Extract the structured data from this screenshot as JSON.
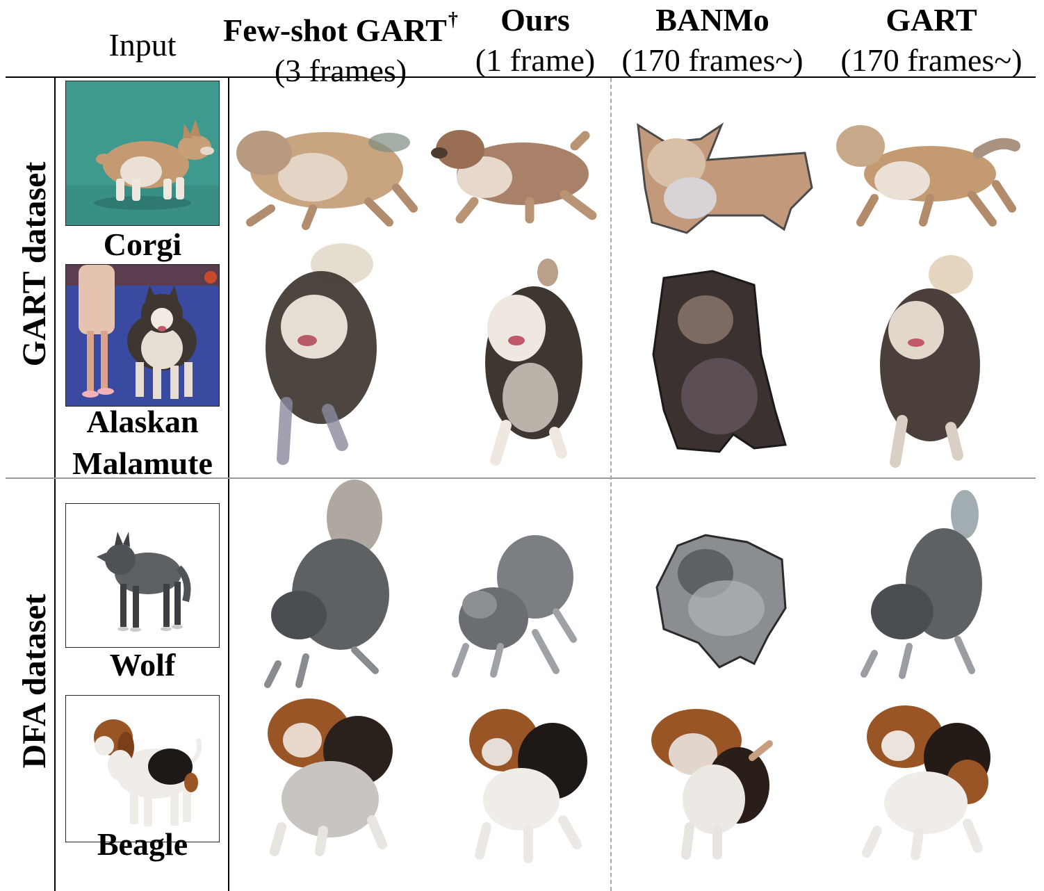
{
  "header": {
    "input": "Input",
    "columns": [
      {
        "key": "few_shot_gart",
        "method": "Few-shot GART",
        "superscript": "†",
        "frames": "(3 frames)"
      },
      {
        "key": "ours",
        "method": "Ours",
        "superscript": "",
        "frames": "(1 frame)"
      },
      {
        "key": "banmo",
        "method": "BANMo",
        "superscript": "",
        "frames": "(170 frames~)"
      },
      {
        "key": "gart",
        "method": "GART",
        "superscript": "",
        "frames": "(170 frames~)"
      }
    ]
  },
  "groups": [
    {
      "label": "GART dataset",
      "rows": [
        {
          "species": "Corgi",
          "input_bg": "#3e9a8e"
        },
        {
          "species_line1": "Alaskan",
          "species_line2": "Malamute",
          "input_bg": "#3a4aa0"
        }
      ]
    },
    {
      "label": "DFA dataset",
      "rows": [
        {
          "species": "Wolf",
          "input_bg": "#ffffff"
        },
        {
          "species": "Beagle",
          "input_bg": "#ffffff"
        }
      ]
    }
  ],
  "colors": {
    "corgi_body": "#c39a72",
    "corgi_chest": "#eae0d6",
    "malamute_dark": "#3e3630",
    "malamute_light": "#e6ddd3",
    "wolf_grey": "#6d7174",
    "beagle_brown": "#9a5526",
    "beagle_black": "#1e1816",
    "beagle_white": "#f0ece8",
    "green_screen": "#3e9a8e",
    "blue_carpet": "#3a4aa0"
  }
}
